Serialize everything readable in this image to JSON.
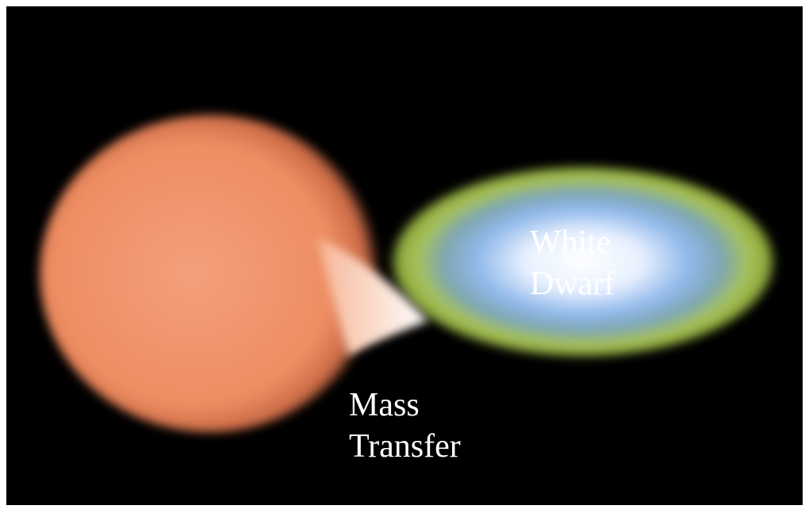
{
  "labels": [
    {
      "lines": [
        "White",
        "Dwarf"
      ]
    },
    {
      "lines": [
        "Mass",
        "Transfer"
      ]
    }
  ]
}
